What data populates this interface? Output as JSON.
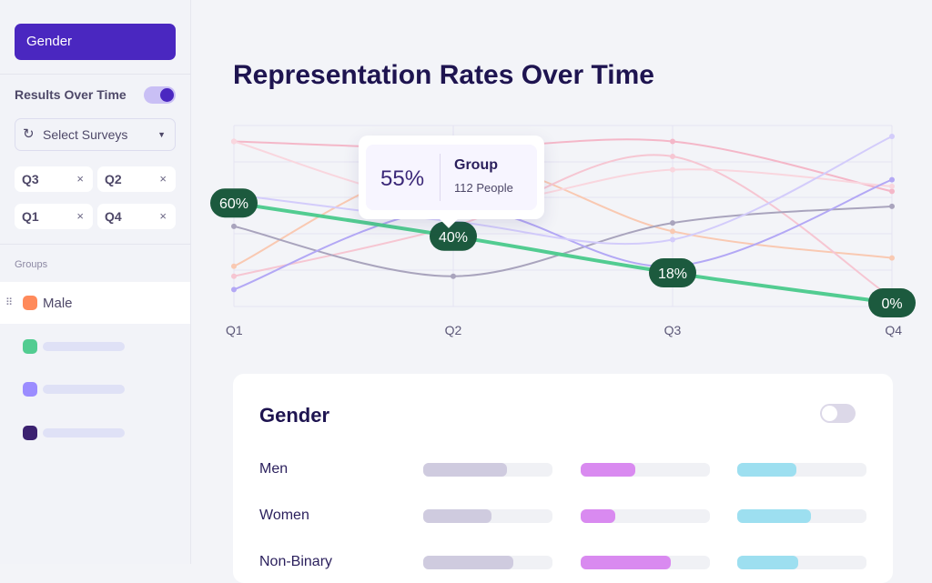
{
  "sidebar": {
    "gender_button": "Gender",
    "results_over_time": "Results Over Time",
    "results_toggle_on": true,
    "select_placeholder": "Select Surveys",
    "chips": [
      "Q3",
      "Q2",
      "Q1",
      "Q4"
    ],
    "chip_remove": "×",
    "groups_label": "Groups",
    "groups": [
      {
        "label": "Male",
        "color": "#ff8a5b"
      },
      {
        "label": "",
        "color": "#52cc91"
      },
      {
        "label": "",
        "color": "#9b8cff"
      },
      {
        "label": "",
        "color": "#3b2170"
      }
    ]
  },
  "main": {
    "title": "Representation Rates Over Time"
  },
  "tooltip": {
    "value": "55%",
    "group": "Group",
    "people": "112 People"
  },
  "chart_data": {
    "type": "line",
    "categories": [
      "Q1",
      "Q2",
      "Q3",
      "Q4"
    ],
    "highlight": {
      "values": [
        60,
        40,
        18,
        0
      ],
      "labels": [
        "60%",
        "40%",
        "18%",
        "0%"
      ],
      "color": "#52cc91"
    },
    "series": [
      {
        "color": "#f4b7c8",
        "values": [
          97,
          93,
          97,
          67
        ]
      },
      {
        "color": "#f9c9b2",
        "values": [
          22,
          84,
          43,
          27
        ]
      },
      {
        "color": "#f6c6d2",
        "values": [
          16,
          46,
          88,
          3
        ]
      },
      {
        "color": "#f9d6de",
        "values": [
          97,
          60,
          80,
          70
        ]
      },
      {
        "color": "#a9a4bd",
        "values": [
          46,
          16,
          48,
          58
        ]
      },
      {
        "color": "#b3a8f5",
        "values": [
          8,
          57,
          22,
          74
        ]
      },
      {
        "color": "#d3ccfb",
        "values": [
          65,
          49,
          38,
          100
        ]
      }
    ]
  },
  "card": {
    "title": "Gender",
    "toggle_on": false,
    "colors": [
      "#cfcbdf",
      "#d98af0",
      "#9ddff0"
    ],
    "rows": [
      {
        "label": "Men",
        "values": [
          0.65,
          0.42,
          0.46
        ]
      },
      {
        "label": "Women",
        "values": [
          0.53,
          0.27,
          0.57
        ]
      },
      {
        "label": "Non-Binary",
        "values": [
          0.7,
          0.7,
          0.47
        ]
      }
    ]
  }
}
